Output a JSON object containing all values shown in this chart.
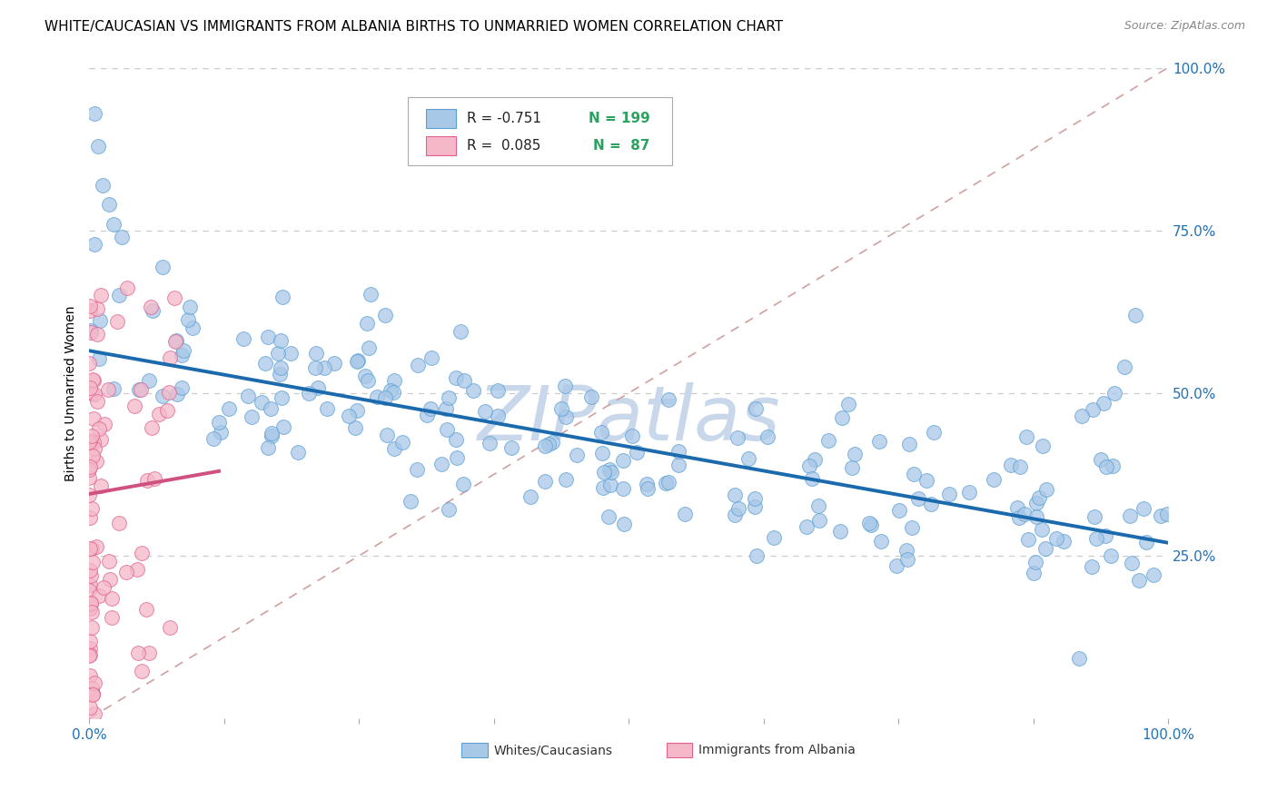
{
  "title": "WHITE/CAUCASIAN VS IMMIGRANTS FROM ALBANIA BIRTHS TO UNMARRIED WOMEN CORRELATION CHART",
  "source": "Source: ZipAtlas.com",
  "ylabel": "Births to Unmarried Women",
  "watermark": "ZIPatlas",
  "blue_R": -0.751,
  "blue_N": 199,
  "pink_R": 0.085,
  "pink_N": 87,
  "blue_label": "Whites/Caucasians",
  "pink_label": "Immigrants from Albania",
  "blue_color": "#a8c8e8",
  "blue_edge": "#5a9fd4",
  "pink_color": "#f4b8c8",
  "pink_edge": "#e06090",
  "blue_line_color": "#1a6aad",
  "pink_line_color": "#d05080",
  "ref_line_color": "#d0a0a0",
  "legend_N_color": "#2ca25f",
  "xlim": [
    0.0,
    1.0
  ],
  "ylim": [
    0.0,
    1.0
  ],
  "xtick_labels": [
    "0.0%",
    "100.0%"
  ],
  "ytick_labels": [
    "100.0%",
    "75.0%",
    "50.0%",
    "25.0%"
  ],
  "ytick_positions": [
    1.0,
    0.75,
    0.5,
    0.25
  ],
  "title_fontsize": 11,
  "source_fontsize": 9,
  "axis_label_fontsize": 10,
  "tick_fontsize": 11,
  "legend_fontsize": 11,
  "watermark_fontsize": 60,
  "watermark_color": "#c8d8ea",
  "background_color": "#ffffff",
  "grid_color": "#cccccc",
  "blue_line_y0": 0.565,
  "blue_line_y1": 0.27,
  "pink_line_x0": 0.0,
  "pink_line_x1": 0.12,
  "pink_line_y0": 0.345,
  "pink_line_y1": 0.38
}
